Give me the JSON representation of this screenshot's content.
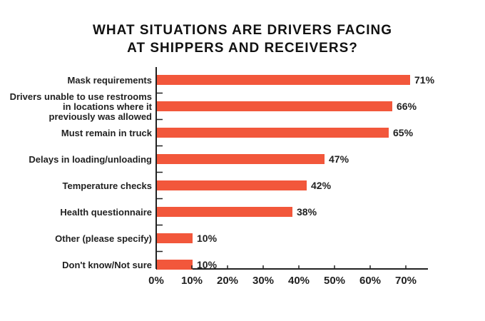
{
  "chart_data": {
    "type": "bar",
    "orientation": "horizontal",
    "title": [
      "WHAT SITUATIONS ARE DRIVERS FACING",
      "AT SHIPPERS AND RECEIVERS?"
    ],
    "categories": [
      [
        "Mask requirements"
      ],
      [
        "Drivers unable to use restrooms",
        "in locations where it",
        "previously was allowed"
      ],
      [
        "Must remain in truck"
      ],
      [
        "Delays in loading/unloading"
      ],
      [
        "Temperature checks"
      ],
      [
        "Health questionnaire"
      ],
      [
        "Other (please specify)"
      ],
      [
        "Don't know/Not sure"
      ]
    ],
    "values": [
      71,
      66,
      65,
      47,
      42,
      38,
      10,
      10
    ],
    "data_labels": [
      "71%",
      "66%",
      "65%",
      "47%",
      "42%",
      "38%",
      "10%",
      "10%"
    ],
    "xticks": [
      "0%",
      "10%",
      "20%",
      "30%",
      "40%",
      "50%",
      "60%",
      "70%"
    ],
    "xlim": [
      0,
      76
    ],
    "xlabel": "",
    "ylabel": "",
    "bar_color": "#f2573b",
    "grid": false
  }
}
